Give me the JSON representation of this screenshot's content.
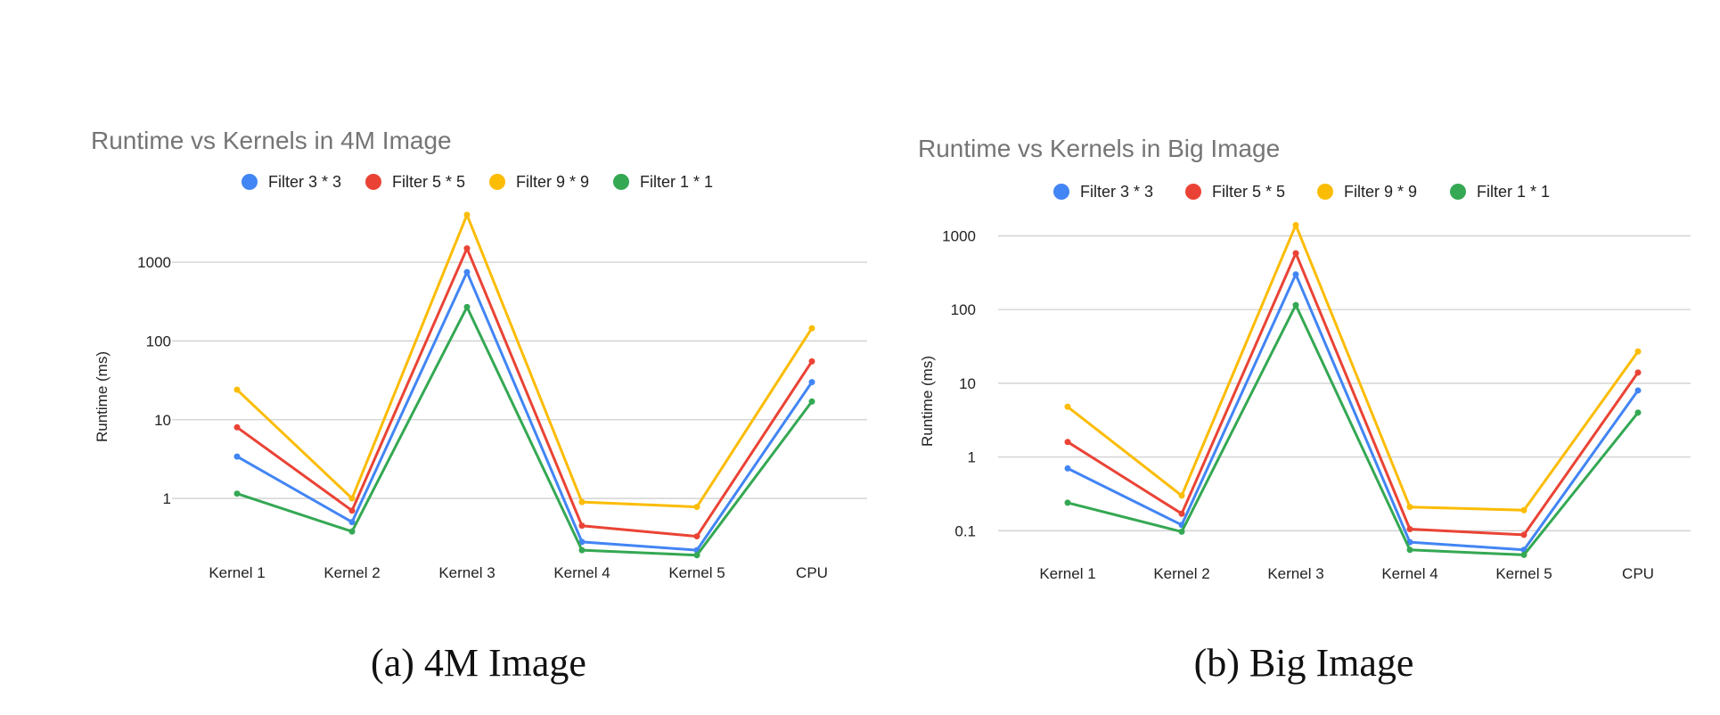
{
  "colors": {
    "Filter 3 * 3": "#4285F4",
    "Filter 5 * 5": "#EA4335",
    "Filter 9 * 9": "#FBBC04",
    "Filter 1 * 1": "#34A853"
  },
  "chart_data": [
    {
      "type": "line",
      "title": "Runtime vs Kernels in 4M Image",
      "caption": "(a) 4M Image",
      "xlabel": "",
      "ylabel": "Runtime (ms)",
      "yscale": "log",
      "yticks": [
        1,
        10,
        100,
        1000
      ],
      "ytick_labels": [
        "1",
        "10",
        "100",
        "1000"
      ],
      "ylim": [
        0.17,
        4000
      ],
      "grid": true,
      "legend": "top",
      "categories": [
        "Kernel 1",
        "Kernel 2",
        "Kernel 3",
        "Kernel 4",
        "Kernel 5",
        "CPU"
      ],
      "series": [
        {
          "name": "Filter 3 * 3",
          "values": [
            3.4,
            0.5,
            750,
            0.28,
            0.22,
            30
          ]
        },
        {
          "name": "Filter 5 * 5",
          "values": [
            8,
            0.7,
            1500,
            0.45,
            0.33,
            55
          ]
        },
        {
          "name": "Filter 9 * 9",
          "values": [
            24,
            1.0,
            4000,
            0.9,
            0.78,
            145
          ]
        },
        {
          "name": "Filter 1 * 1",
          "values": [
            1.15,
            0.38,
            270,
            0.22,
            0.19,
            17
          ]
        }
      ]
    },
    {
      "type": "line",
      "title": "Runtime vs Kernels in Big Image",
      "caption": "(b) Big Image",
      "xlabel": "",
      "ylabel": "Runtime (ms)",
      "yscale": "log",
      "yticks": [
        0.1,
        1,
        10,
        100,
        1000
      ],
      "ytick_labels": [
        "0.1",
        "1",
        "10",
        "100",
        "1000"
      ],
      "ylim": [
        0.035,
        1500
      ],
      "grid": true,
      "legend": "top",
      "categories": [
        "Kernel 1",
        "Kernel 2",
        "Kernel 3",
        "Kernel 4",
        "Kernel 5",
        "CPU"
      ],
      "series": [
        {
          "name": "Filter 3 * 3",
          "values": [
            0.7,
            0.12,
            300,
            0.07,
            0.055,
            8
          ]
        },
        {
          "name": "Filter 5 * 5",
          "values": [
            1.6,
            0.17,
            580,
            0.105,
            0.088,
            14
          ]
        },
        {
          "name": "Filter 9 * 9",
          "values": [
            4.8,
            0.3,
            1400,
            0.21,
            0.19,
            27
          ]
        },
        {
          "name": "Filter 1 * 1",
          "values": [
            0.24,
            0.097,
            115,
            0.055,
            0.047,
            4
          ]
        }
      ]
    }
  ]
}
